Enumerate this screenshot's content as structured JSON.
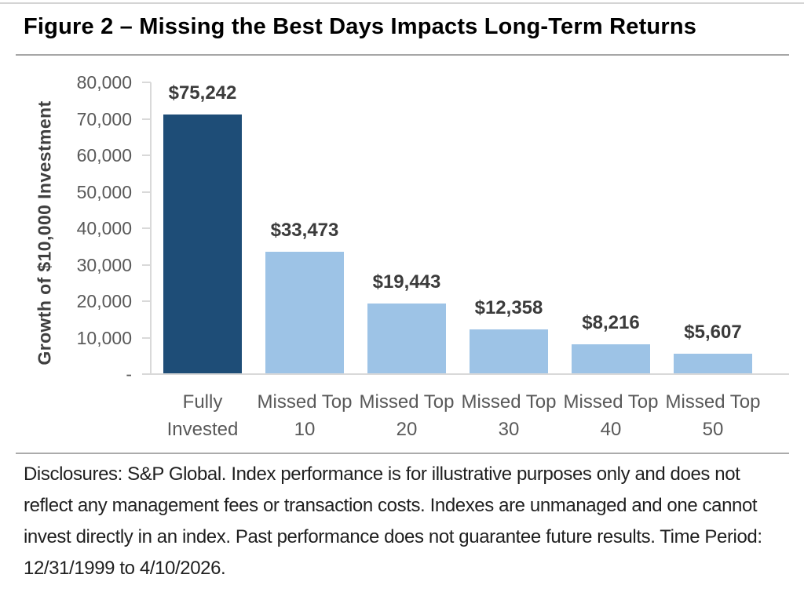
{
  "page": {
    "title": "Figure 2 – Missing the Best Days Impacts Long-Term Returns"
  },
  "chart_data": {
    "type": "bar",
    "title": "Figure 2 – Missing the Best Days Impacts Long-Term Returns",
    "xlabel": "",
    "ylabel": "Growth of $10,000 Investment",
    "ylim": [
      0,
      80000
    ],
    "ytick_interval": 10000,
    "ytick_labels": [
      "80,000",
      "70,000",
      "60,000",
      "50,000",
      "40,000",
      "30,000",
      "20,000",
      "10,000",
      "-"
    ],
    "grid": false,
    "legend": false,
    "categories": [
      "Fully Invested",
      "Missed Top 10",
      "Missed Top 20",
      "Missed Top 30",
      "Missed Top 40",
      "Missed Top 50"
    ],
    "values": [
      75242,
      33473,
      19443,
      12358,
      8216,
      5607
    ],
    "value_labels": [
      "$75,242",
      "$33,473",
      "$19,443",
      "$12,358",
      "$8,216",
      "$5,607"
    ],
    "bar_colors": [
      "#1e4d77",
      "#9dc3e6",
      "#9dc3e6",
      "#9dc3e6",
      "#9dc3e6",
      "#9dc3e6"
    ]
  },
  "footer": {
    "disclosure": "Disclosures: S&P Global. Index performance is for illustrative purposes only and does not reflect any management fees or transaction costs. Indexes are unmanaged and one cannot invest directly in an index. Past performance does not guarantee future results. Time Period: 12/31/1999 to 4/10/2026."
  }
}
